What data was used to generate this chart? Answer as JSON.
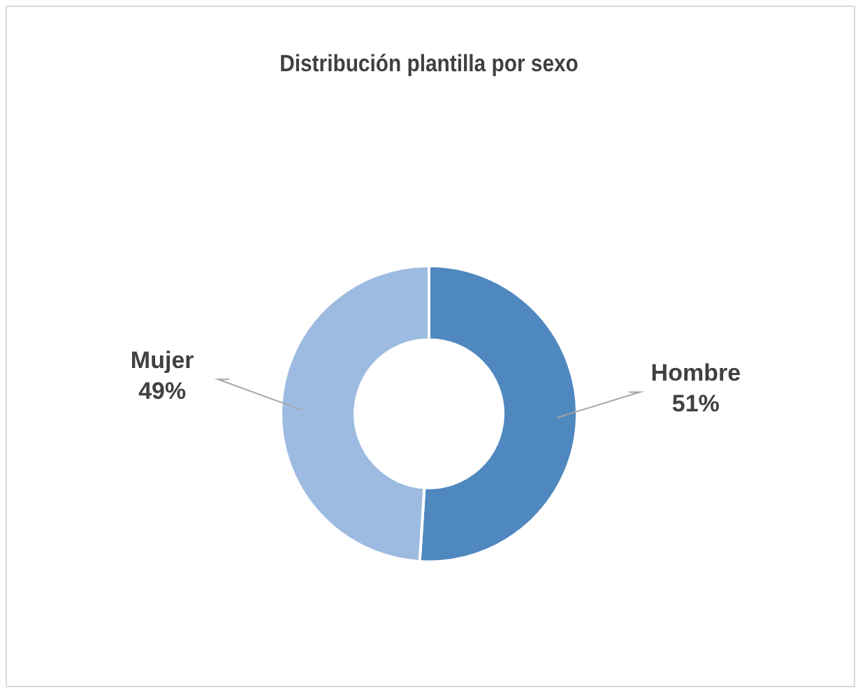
{
  "chart_data": {
    "type": "donut",
    "title": "Distribución plantilla por sexo",
    "categories": [
      "Hombre",
      "Mujer"
    ],
    "values": [
      51,
      49
    ],
    "value_labels": [
      "51%",
      "49%"
    ],
    "colors": [
      "#4f88bf",
      "#9dbbe1"
    ],
    "legend": false
  }
}
